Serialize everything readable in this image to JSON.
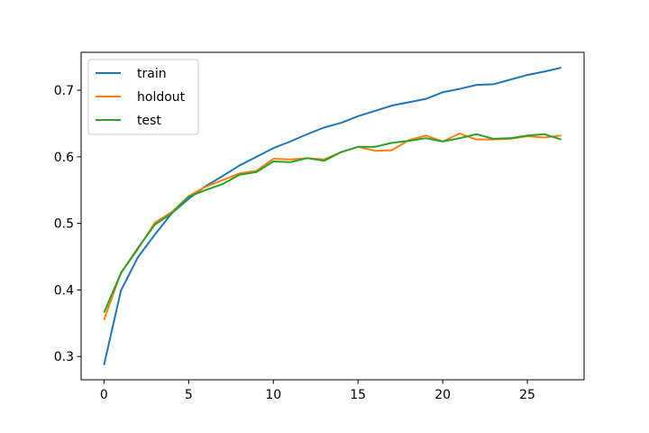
{
  "chart_data": {
    "type": "line",
    "title": "",
    "xlabel": "",
    "ylabel": "",
    "xlim": [
      -1.35,
      28.35
    ],
    "ylim": [
      0.265,
      0.757
    ],
    "xticks": [
      0,
      5,
      10,
      15,
      20,
      25
    ],
    "yticks": [
      0.3,
      0.4,
      0.5,
      0.6,
      0.7
    ],
    "xtick_labels": [
      "0",
      "5",
      "10",
      "15",
      "20",
      "25"
    ],
    "ytick_labels": [
      "0.3",
      "0.4",
      "0.5",
      "0.6",
      "0.7"
    ],
    "grid": false,
    "legend_placement": "top-left",
    "x": [
      0,
      1,
      2,
      3,
      4,
      5,
      6,
      7,
      8,
      9,
      10,
      11,
      12,
      13,
      14,
      15,
      16,
      17,
      18,
      19,
      20,
      21,
      22,
      23,
      24,
      25,
      26,
      27
    ],
    "series": [
      {
        "name": "train",
        "color": "#1f77b4",
        "values": [
          0.287,
          0.399,
          0.449,
          0.483,
          0.515,
          0.537,
          0.556,
          0.571,
          0.587,
          0.6,
          0.613,
          0.623,
          0.634,
          0.644,
          0.651,
          0.661,
          0.669,
          0.677,
          0.682,
          0.687,
          0.697,
          0.702,
          0.708,
          0.709,
          0.716,
          0.723,
          0.728,
          0.734
        ]
      },
      {
        "name": "holdout",
        "color": "#ff7f0e",
        "values": [
          0.355,
          0.426,
          0.461,
          0.501,
          0.517,
          0.541,
          0.555,
          0.565,
          0.575,
          0.579,
          0.597,
          0.596,
          0.598,
          0.596,
          0.607,
          0.615,
          0.609,
          0.61,
          0.625,
          0.632,
          0.623,
          0.635,
          0.626,
          0.626,
          0.627,
          0.631,
          0.629,
          0.632
        ]
      },
      {
        "name": "test",
        "color": "#2ca02c",
        "values": [
          0.366,
          0.425,
          0.463,
          0.498,
          0.515,
          0.54,
          0.55,
          0.559,
          0.573,
          0.577,
          0.593,
          0.592,
          0.598,
          0.594,
          0.607,
          0.615,
          0.615,
          0.621,
          0.624,
          0.628,
          0.623,
          0.628,
          0.634,
          0.627,
          0.628,
          0.632,
          0.634,
          0.626
        ]
      }
    ]
  }
}
